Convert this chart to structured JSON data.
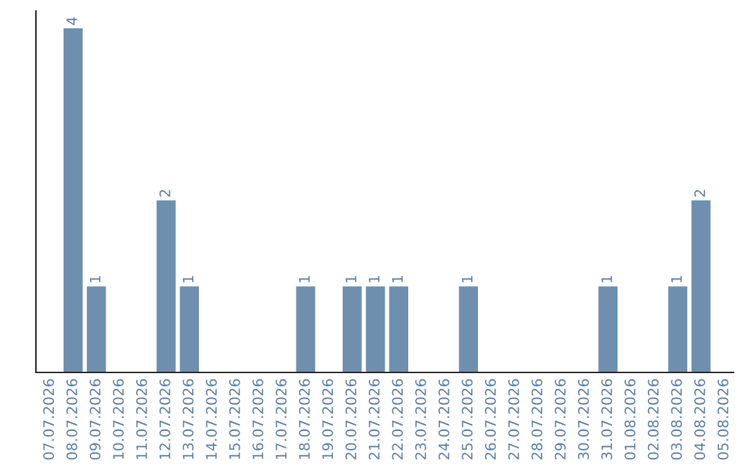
{
  "chart_data": {
    "type": "bar",
    "categories": [
      "07.07.2026",
      "08.07.2026",
      "09.07.2026",
      "10.07.2026",
      "11.07.2026",
      "12.07.2026",
      "13.07.2026",
      "14.07.2026",
      "15.07.2026",
      "16.07.2026",
      "17.07.2026",
      "18.07.2026",
      "19.07.2026",
      "20.07.2026",
      "21.07.2026",
      "22.07.2026",
      "23.07.2026",
      "24.07.2026",
      "25.07.2026",
      "26.07.2026",
      "27.07.2026",
      "28.07.2026",
      "29.07.2026",
      "30.07.2026",
      "31.07.2026",
      "01.08.2026",
      "02.08.2026",
      "03.08.2026",
      "04.08.2026",
      "05.08.2026"
    ],
    "values": [
      0,
      4,
      1,
      0,
      0,
      2,
      1,
      0,
      0,
      0,
      0,
      1,
      0,
      1,
      1,
      1,
      0,
      0,
      1,
      0,
      0,
      0,
      0,
      0,
      1,
      0,
      0,
      1,
      2,
      0
    ],
    "value_labels": [
      null,
      "4",
      "1",
      null,
      null,
      "2",
      "1",
      null,
      null,
      null,
      null,
      "1",
      null,
      "1",
      "1",
      "1",
      null,
      null,
      "1",
      null,
      null,
      null,
      null,
      null,
      "1",
      null,
      null,
      "1",
      "2",
      null
    ],
    "color": "#6e8fae",
    "grid": false,
    "tick_labels": "x"
  }
}
